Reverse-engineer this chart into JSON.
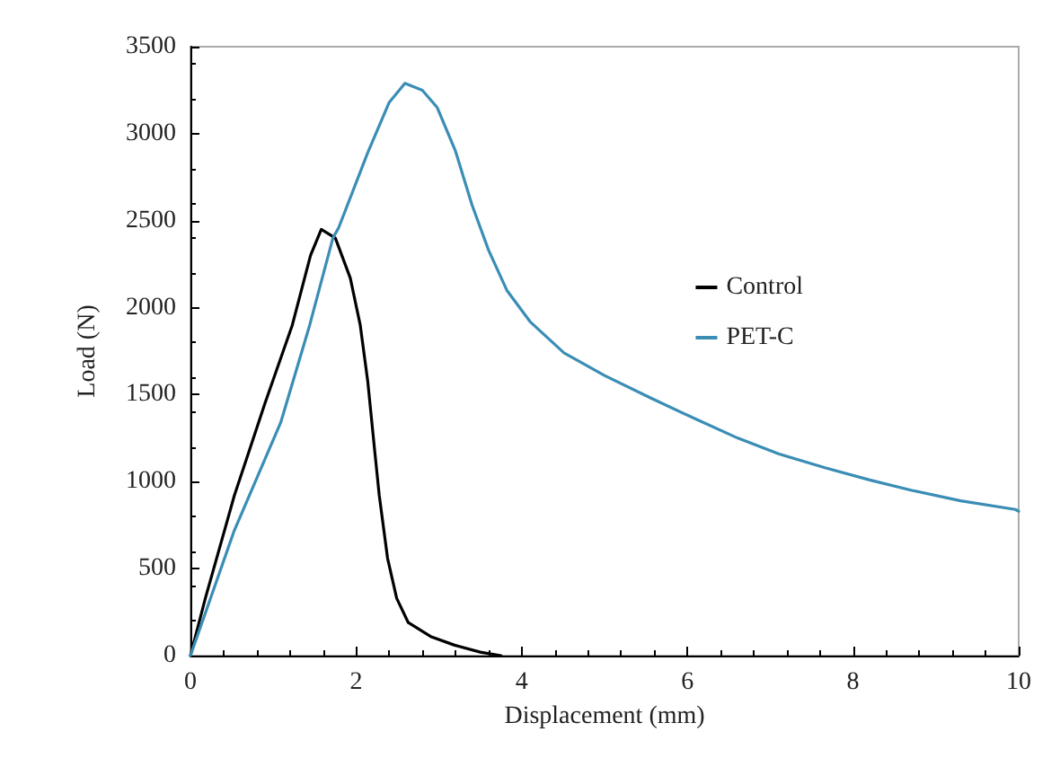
{
  "chart_data": {
    "type": "line",
    "xlabel": "Displacement (mm)",
    "ylabel": "Load (N)",
    "xlim": [
      0,
      10
    ],
    "xticks": [
      0,
      2,
      4,
      6,
      8,
      10
    ],
    "ylim": [
      0,
      3500
    ],
    "yticks": [
      0,
      500,
      1000,
      1500,
      2000,
      2500,
      3000,
      3500
    ],
    "grid": false,
    "legend": "right",
    "marker": "none",
    "line_style": "solid",
    "series": [
      {
        "name": "Control",
        "color": "#000000",
        "x": [
          0,
          0.18,
          0.53,
          0.9,
          1.23,
          1.45,
          1.58,
          1.75,
          1.93,
          2.05,
          2.14,
          2.22,
          2.28,
          2.38,
          2.49,
          2.63,
          2.9,
          3.19,
          3.5,
          3.75
        ],
        "values": [
          0,
          330,
          920,
          1450,
          1900,
          2300,
          2450,
          2400,
          2170,
          1900,
          1580,
          1200,
          920,
          560,
          330,
          190,
          110,
          60,
          20,
          0
        ]
      },
      {
        "name": "PET-C",
        "color": "#3a8db5",
        "x": [
          0,
          0.53,
          1.09,
          1.44,
          1.72,
          1.79,
          2.14,
          2.4,
          2.59,
          2.8,
          2.98,
          3.2,
          3.4,
          3.6,
          3.82,
          4.1,
          4.51,
          5.0,
          5.56,
          6.1,
          6.61,
          7.1,
          7.66,
          8.2,
          8.71,
          9.3,
          9.96,
          10
        ],
        "values": [
          0,
          720,
          1340,
          1900,
          2400,
          2460,
          2890,
          3180,
          3290,
          3250,
          3150,
          2900,
          2590,
          2330,
          2100,
          1920,
          1740,
          1610,
          1480,
          1360,
          1250,
          1160,
          1080,
          1010,
          950,
          890,
          840,
          830
        ]
      }
    ]
  }
}
